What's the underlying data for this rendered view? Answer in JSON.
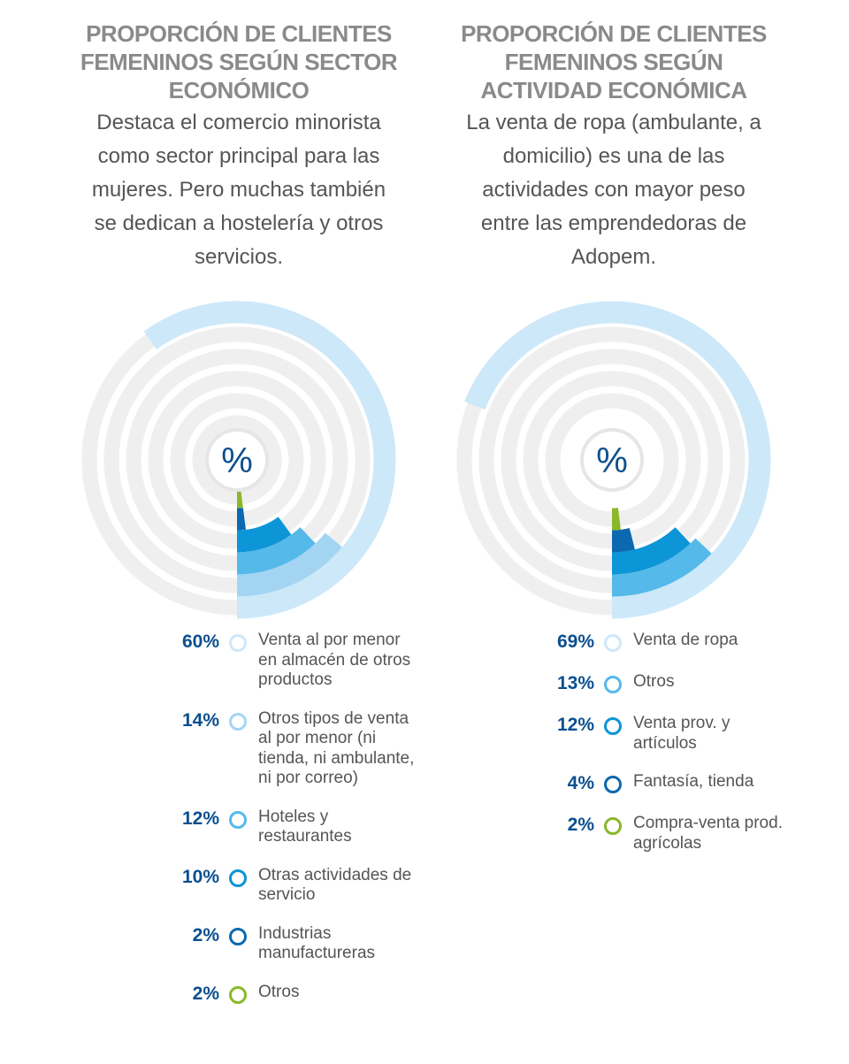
{
  "chart_data": [
    {
      "type": "radial_bar",
      "title": "Proporción de clientes femeninos según sector económico",
      "subtitle": "Destaca el comercio minorista como sector principal para las mujeres. Pero muchas también se dedican a hostelería y otros servicios.",
      "center_label": "%",
      "categories": [
        "Venta al por menor en almacén de otros productos",
        "Otros tipos de venta al por menor (ni tienda, ni ambulante, ni por correo)",
        "Hoteles y restaurantes",
        "Otras actividades de servicio",
        "Industrias manufactureras",
        "Otros"
      ],
      "values": [
        60,
        14,
        12,
        10,
        2,
        2
      ],
      "value_labels": [
        "60%",
        "14%",
        "12%",
        "10%",
        "2%",
        "2%"
      ],
      "colors": [
        "#cde8f9",
        "#a3d5f3",
        "#55b9ea",
        "#0c95d7",
        "#0b69b0",
        "#8bb82b"
      ]
    },
    {
      "type": "radial_bar",
      "title": "Proporción de clientes femeninos según actividad económica",
      "subtitle": "La venta de ropa (ambulante, a domicilio) es una de las actividades con mayor peso entre las emprendedoras de Adopem.",
      "center_label": "%",
      "categories": [
        "Venta de ropa",
        "Otros",
        "Venta prov. y artículos",
        "Fantasía, tienda",
        "Compra-venta prod. agrícolas"
      ],
      "values": [
        69,
        13,
        12,
        4,
        2
      ],
      "value_labels": [
        "69%",
        "13%",
        "12%",
        "4%",
        "2%"
      ],
      "colors": [
        "#cde8f9",
        "#55b9ea",
        "#0c95d7",
        "#0b69b0",
        "#8bb82b"
      ]
    }
  ]
}
